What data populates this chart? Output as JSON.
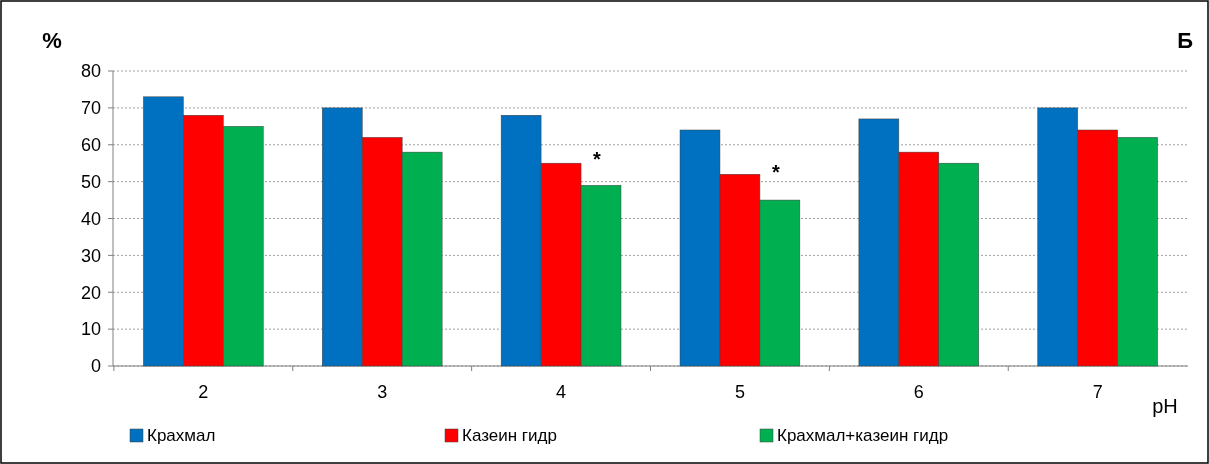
{
  "chart_data": {
    "type": "bar",
    "ylabel": "%",
    "xlabel": "pH",
    "categories": [
      "2",
      "3",
      "4",
      "5",
      "6",
      "7"
    ],
    "series": [
      {
        "name": "Крахмал",
        "color": "#0070c0",
        "values": [
          73,
          70,
          68,
          64,
          67,
          70
        ]
      },
      {
        "name": "Казеин гидр",
        "color": "#ff0000",
        "values": [
          68,
          62,
          55,
          52,
          58,
          64
        ]
      },
      {
        "name": "Крахмал+казеин гидр",
        "color": "#00b050",
        "values": [
          65,
          58,
          49,
          45,
          55,
          62
        ]
      }
    ],
    "ylim": [
      0,
      80
    ],
    "yticks": [
      0,
      10,
      20,
      30,
      40,
      50,
      60,
      70,
      80
    ],
    "grid": "y",
    "legend": "bottom",
    "annotations": [
      "Б",
      "*",
      "*"
    ]
  }
}
